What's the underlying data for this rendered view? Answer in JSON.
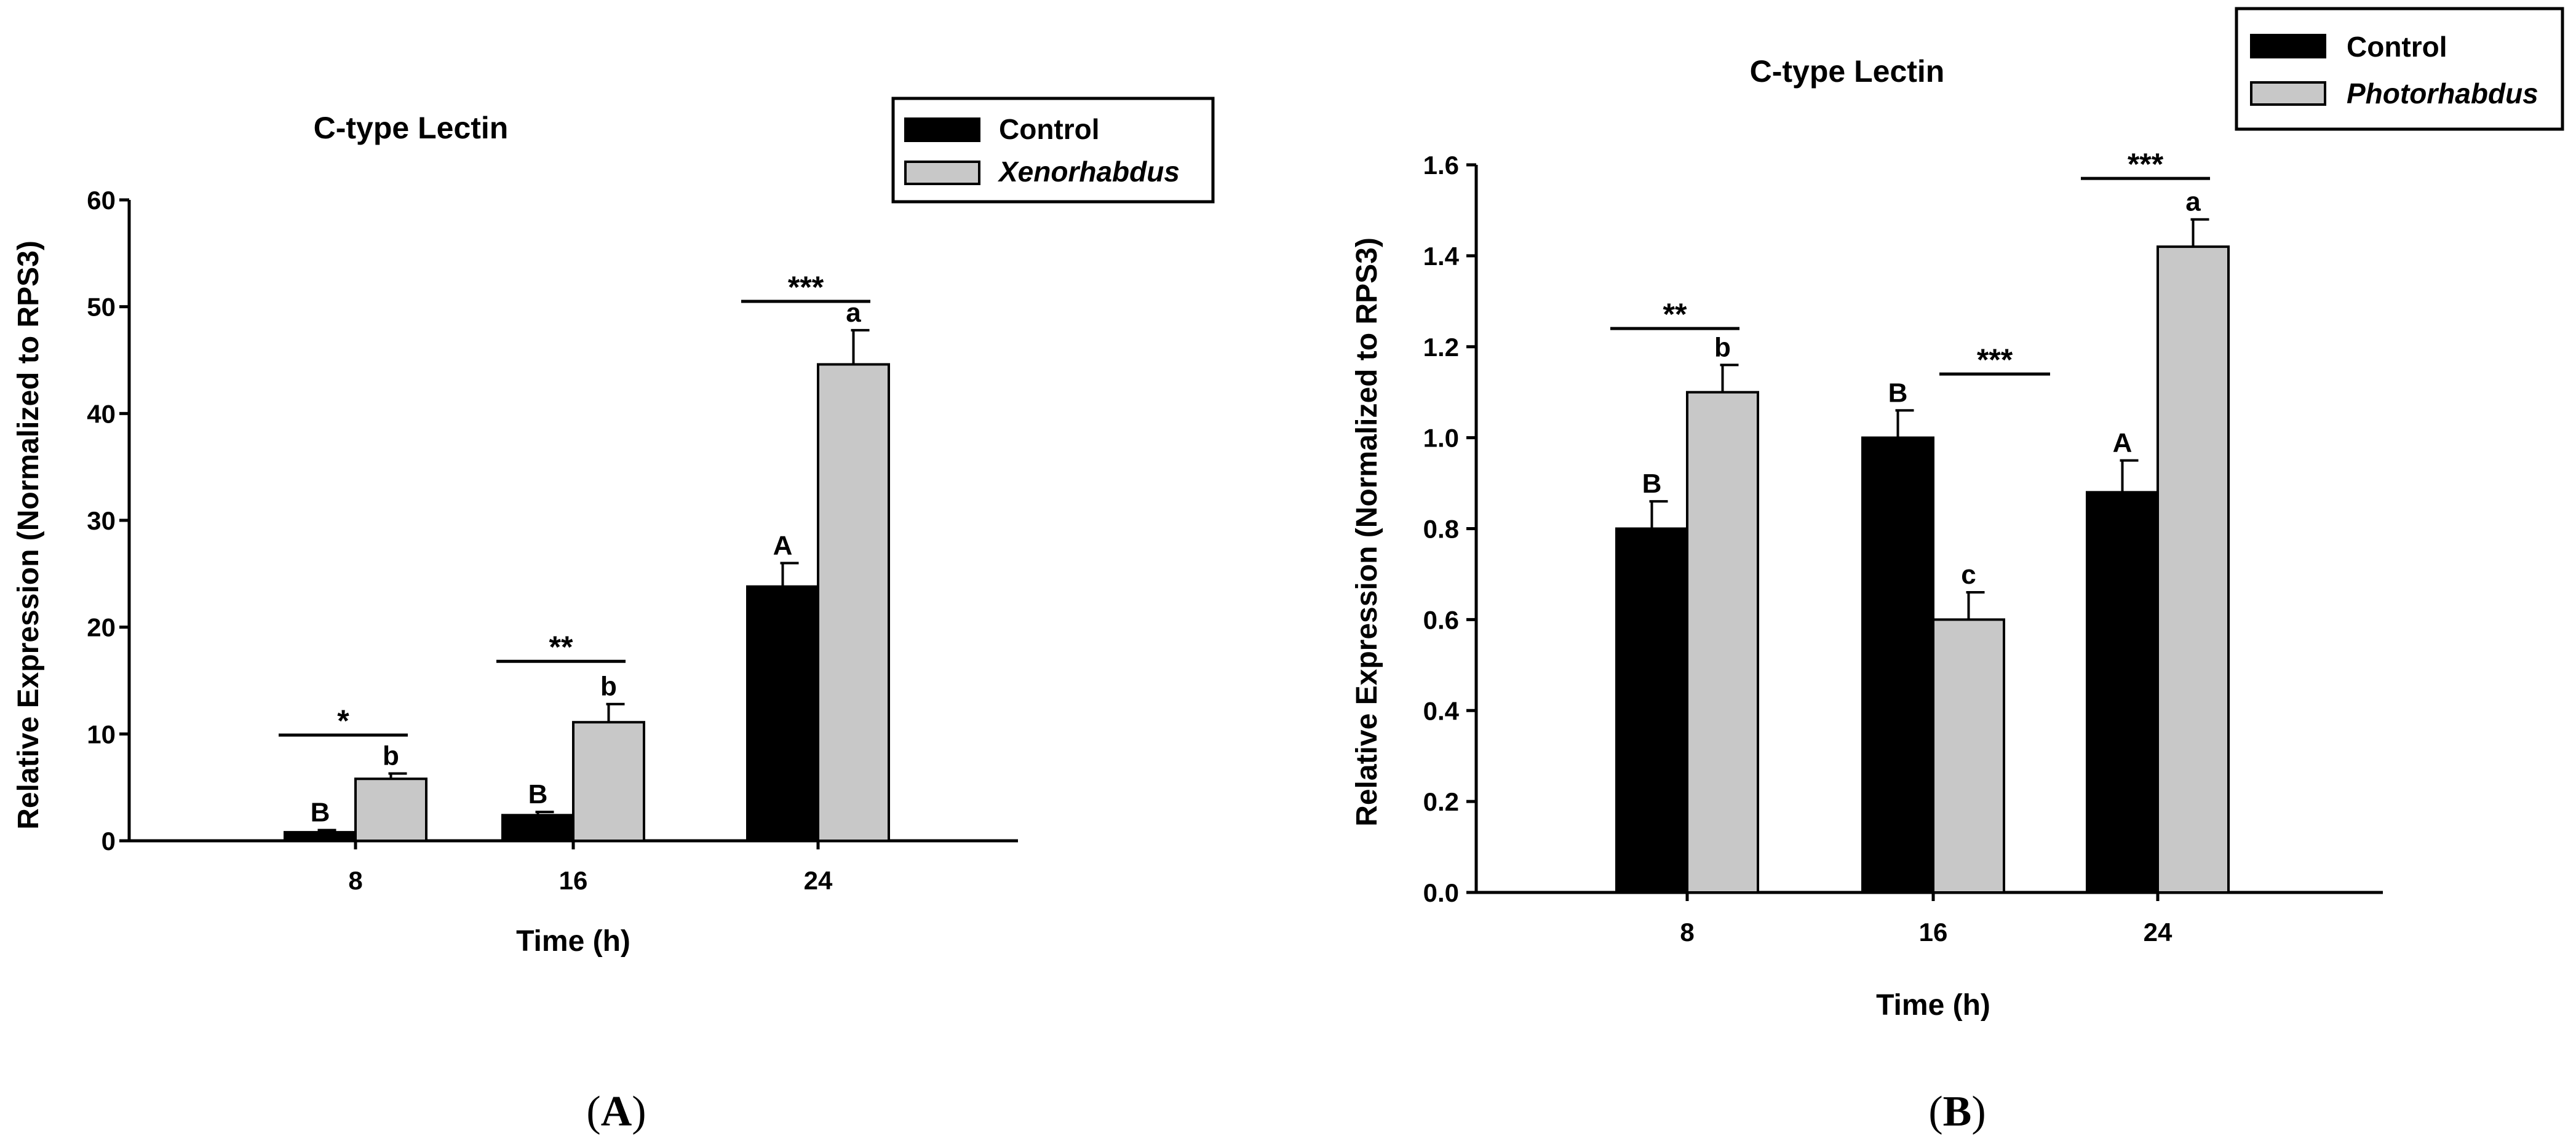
{
  "colors": {
    "control": "#000000",
    "treatment": "#c8c8c8",
    "axis": "#000000"
  },
  "chart_data": [
    {
      "type": "bar",
      "panel": "A",
      "title": "C-type Lectin",
      "xlabel": "Time (h)",
      "ylabel": "Relative Expression (Normalized to RPS3)",
      "ylim": [
        0,
        60
      ],
      "yticks": [
        "0",
        "10",
        "20",
        "30",
        "40",
        "50",
        "60"
      ],
      "categories": [
        "8",
        "16",
        "24"
      ],
      "legend_position": "top-right",
      "series": [
        {
          "name": "Control",
          "italic": false,
          "values": [
            0.8,
            2.4,
            23.8
          ],
          "errors": [
            0.2,
            0.3,
            2.2
          ]
        },
        {
          "name": "Xenorhabdus",
          "italic": true,
          "values": [
            5.8,
            11.1,
            44.6
          ],
          "errors": [
            0.5,
            1.7,
            3.2
          ]
        }
      ],
      "letters": [
        {
          "series": 0,
          "index": 0,
          "text": "B"
        },
        {
          "series": 1,
          "index": 0,
          "text": "b"
        },
        {
          "series": 0,
          "index": 1,
          "text": "B"
        },
        {
          "series": 1,
          "index": 1,
          "text": "b"
        },
        {
          "series": 0,
          "index": 2,
          "text": "A"
        },
        {
          "series": 1,
          "index": 2,
          "text": "a"
        }
      ],
      "significance": [
        {
          "index": 0,
          "text": "*",
          "bracket_value": 9.9
        },
        {
          "index": 1,
          "text": "**",
          "bracket_value": 16.8
        },
        {
          "index": 2,
          "text": "***",
          "bracket_value": 50.5
        }
      ]
    },
    {
      "type": "bar",
      "panel": "B",
      "title": "C-type Lectin",
      "xlabel": "Time (h)",
      "ylabel": "Relative Expression (Normalized to RPS3)",
      "ylim": [
        0,
        1.6
      ],
      "yticks": [
        "0.0",
        "0.2",
        "0.4",
        "0.6",
        "0.8",
        "1.0",
        "1.2",
        "1.4",
        "1.6"
      ],
      "categories": [
        "8",
        "16",
        "24"
      ],
      "legend_position": "top-right",
      "series": [
        {
          "name": "Control",
          "italic": false,
          "values": [
            0.8,
            1.0,
            0.88
          ],
          "errors": [
            0.06,
            0.06,
            0.07
          ]
        },
        {
          "name": "Photorhabdus",
          "italic": true,
          "values": [
            1.1,
            0.6,
            1.42
          ],
          "errors": [
            0.06,
            0.06,
            0.06
          ]
        }
      ],
      "letters": [
        {
          "series": 0,
          "index": 0,
          "text": "B"
        },
        {
          "series": 1,
          "index": 0,
          "text": "b"
        },
        {
          "series": 0,
          "index": 1,
          "text": "B"
        },
        {
          "series": 1,
          "index": 1,
          "text": "c"
        },
        {
          "series": 0,
          "index": 2,
          "text": "A"
        },
        {
          "series": 1,
          "index": 2,
          "text": "a"
        }
      ],
      "significance": [
        {
          "index": 0,
          "text": "**",
          "bracket_value": 1.24,
          "span": "control-to-treatment"
        },
        {
          "index": 1,
          "text": "***",
          "bracket_value": 1.14,
          "span": "treatment-right"
        },
        {
          "index": 2,
          "text": "***",
          "bracket_value": 1.57,
          "span": "control-to-treatment"
        }
      ]
    }
  ],
  "panel_labels": [
    {
      "open": "(",
      "letter": "A",
      "close": ")"
    },
    {
      "open": "(",
      "letter": "B",
      "close": ")"
    }
  ]
}
